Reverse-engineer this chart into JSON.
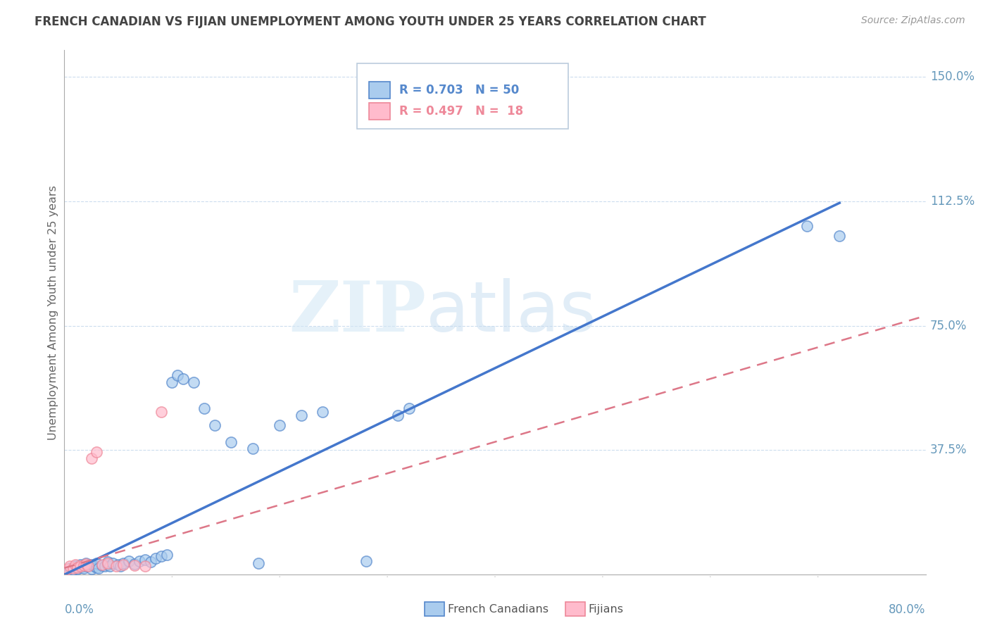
{
  "title": "FRENCH CANADIAN VS FIJIAN UNEMPLOYMENT AMONG YOUTH UNDER 25 YEARS CORRELATION CHART",
  "source": "Source: ZipAtlas.com",
  "ylabel": "Unemployment Among Youth under 25 years",
  "ytick_labels": [
    "37.5%",
    "75.0%",
    "112.5%",
    "150.0%"
  ],
  "ytick_values": [
    0.375,
    0.75,
    1.125,
    1.5
  ],
  "xlim": [
    0.0,
    0.8
  ],
  "ylim": [
    0.0,
    1.58
  ],
  "blue_r": "R = 0.703",
  "blue_n": "N = 50",
  "pink_r": "R = 0.497",
  "pink_n": "N =  18",
  "blue_fill": "#AACCEE",
  "blue_edge": "#5588CC",
  "blue_line": "#4477CC",
  "pink_fill": "#FFBBCC",
  "pink_edge": "#EE8899",
  "pink_line": "#DD7788",
  "axis_color": "#6699BB",
  "grid_color": "#CCDDEE",
  "title_color": "#444444",
  "source_color": "#999999",
  "ylabel_color": "#666666",
  "watermark_zip_color": "#DDEEFF",
  "watermark_atlas_color": "#BBDDEE",
  "french_canadians_x": [
    0.005,
    0.008,
    0.01,
    0.012,
    0.015,
    0.015,
    0.018,
    0.02,
    0.02,
    0.022,
    0.025,
    0.025,
    0.028,
    0.03,
    0.03,
    0.032,
    0.035,
    0.038,
    0.04,
    0.04,
    0.042,
    0.045,
    0.05,
    0.052,
    0.055,
    0.06,
    0.065,
    0.07,
    0.075,
    0.08,
    0.085,
    0.09,
    0.095,
    0.1,
    0.105,
    0.11,
    0.12,
    0.13,
    0.14,
    0.155,
    0.175,
    0.18,
    0.2,
    0.22,
    0.24,
    0.28,
    0.31,
    0.32,
    0.69,
    0.72
  ],
  "french_canadians_y": [
    0.02,
    0.015,
    0.025,
    0.018,
    0.022,
    0.03,
    0.02,
    0.025,
    0.035,
    0.028,
    0.018,
    0.03,
    0.025,
    0.022,
    0.035,
    0.02,
    0.028,
    0.025,
    0.03,
    0.038,
    0.025,
    0.035,
    0.03,
    0.025,
    0.035,
    0.04,
    0.032,
    0.04,
    0.045,
    0.038,
    0.05,
    0.055,
    0.06,
    0.58,
    0.6,
    0.59,
    0.58,
    0.5,
    0.45,
    0.4,
    0.38,
    0.035,
    0.45,
    0.48,
    0.49,
    0.04,
    0.48,
    0.5,
    1.05,
    1.02
  ],
  "fijians_x": [
    0.003,
    0.005,
    0.008,
    0.01,
    0.012,
    0.015,
    0.018,
    0.02,
    0.022,
    0.025,
    0.03,
    0.035,
    0.04,
    0.048,
    0.055,
    0.065,
    0.075,
    0.09
  ],
  "fijians_y": [
    0.018,
    0.025,
    0.02,
    0.03,
    0.022,
    0.025,
    0.028,
    0.032,
    0.025,
    0.35,
    0.37,
    0.03,
    0.035,
    0.025,
    0.03,
    0.028,
    0.025,
    0.49
  ],
  "blue_line_points": [
    [
      0.0,
      0.0
    ],
    [
      0.72,
      1.12
    ]
  ],
  "pink_line_points": [
    [
      0.0,
      0.02
    ],
    [
      0.8,
      0.78
    ]
  ]
}
